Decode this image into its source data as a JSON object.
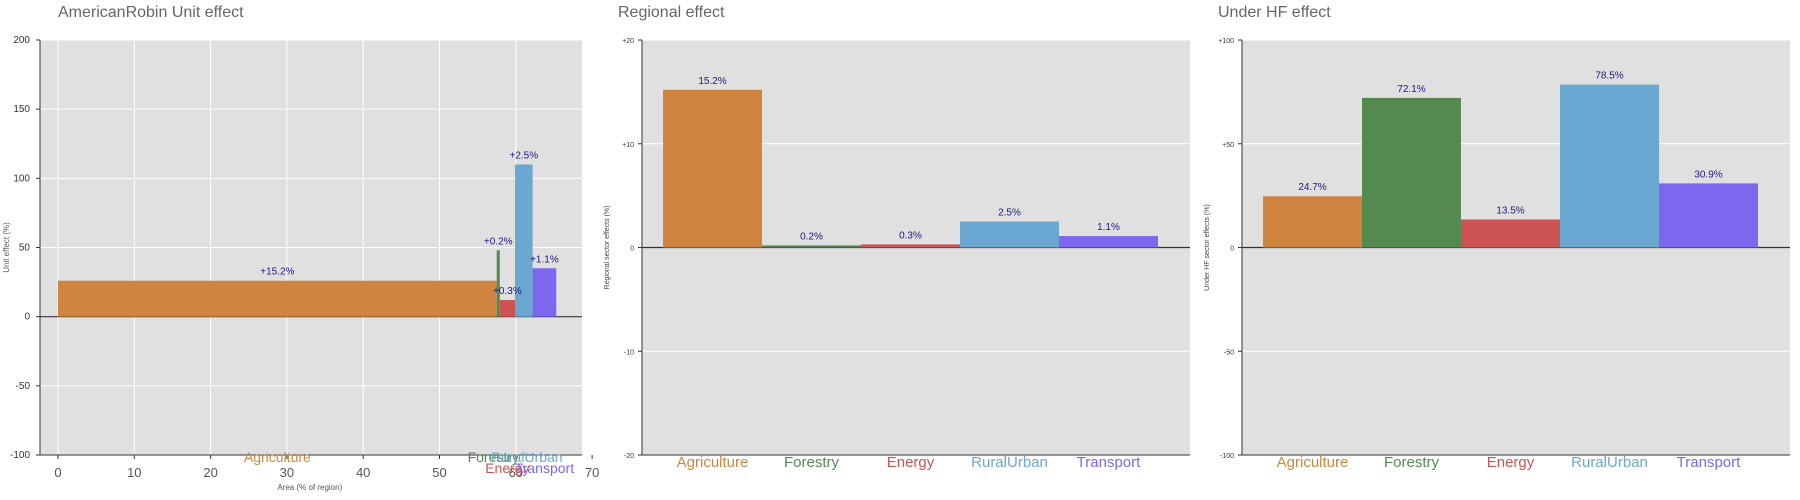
{
  "sector_colors": {
    "Agriculture": "#cf853f",
    "Forestry": "#548a50",
    "Energy": "#cd5352",
    "RuralUrban": "#6aa7d1",
    "Transport": "#7b68ee"
  },
  "chart_data": [
    {
      "type": "bar",
      "title": "AmericanRobin Unit effect",
      "xlabel": "Area (% of region)",
      "ylabel": "Unit effect (%)",
      "xlim": [
        0,
        70
      ],
      "ylim": [
        -100,
        200
      ],
      "xticks": [
        "0",
        "10",
        "20",
        "30",
        "40",
        "50",
        "60",
        "70"
      ],
      "yticks": [
        "-100",
        "-50",
        "0",
        "50",
        "100",
        "150",
        "200"
      ],
      "grid": true,
      "bars": [
        {
          "sector": "Agriculture",
          "x_start": 0,
          "x_end": 57.5,
          "value": 26,
          "label": "+15.2%"
        },
        {
          "sector": "Forestry",
          "x_start": 57.5,
          "x_end": 57.9,
          "value": 48,
          "label": "+0.2%"
        },
        {
          "sector": "Energy",
          "x_start": 57.9,
          "x_end": 59.9,
          "value": 12,
          "label": "+0.3%"
        },
        {
          "sector": "RuralUrban",
          "x_start": 59.9,
          "x_end": 62.2,
          "value": 110,
          "label": "+2.5%"
        },
        {
          "sector": "Transport",
          "x_start": 62.2,
          "x_end": 65.3,
          "value": 35,
          "label": "+1.1%"
        }
      ],
      "sector_labels": [
        "Agriculture",
        "Forestry",
        "Energy",
        "RuralUrban",
        "Transport"
      ]
    },
    {
      "type": "bar",
      "title": "Regional effect",
      "ylabel": "Regional sector effects (%)",
      "ylim": [
        -20,
        20
      ],
      "yticks": [
        "-20",
        "-10",
        "0",
        "+10",
        "+20"
      ],
      "grid": true,
      "categories": [
        "Agriculture",
        "Forestry",
        "Energy",
        "RuralUrban",
        "Transport"
      ],
      "values": [
        15.2,
        0.2,
        0.3,
        2.5,
        1.1
      ],
      "labels": [
        "15.2%",
        "0.2%",
        "0.3%",
        "2.5%",
        "1.1%"
      ]
    },
    {
      "type": "bar",
      "title": "Under HF effect",
      "ylabel": "Under HF sector effects (%)",
      "ylim": [
        -100,
        100
      ],
      "yticks": [
        "-100",
        "-50",
        "0",
        "+50",
        "+100"
      ],
      "grid": true,
      "categories": [
        "Agriculture",
        "Forestry",
        "Energy",
        "RuralUrban",
        "Transport"
      ],
      "values": [
        24.7,
        72.1,
        13.5,
        78.5,
        30.9
      ],
      "labels": [
        "24.7%",
        "72.1%",
        "13.5%",
        "78.5%",
        "30.9%"
      ]
    }
  ]
}
